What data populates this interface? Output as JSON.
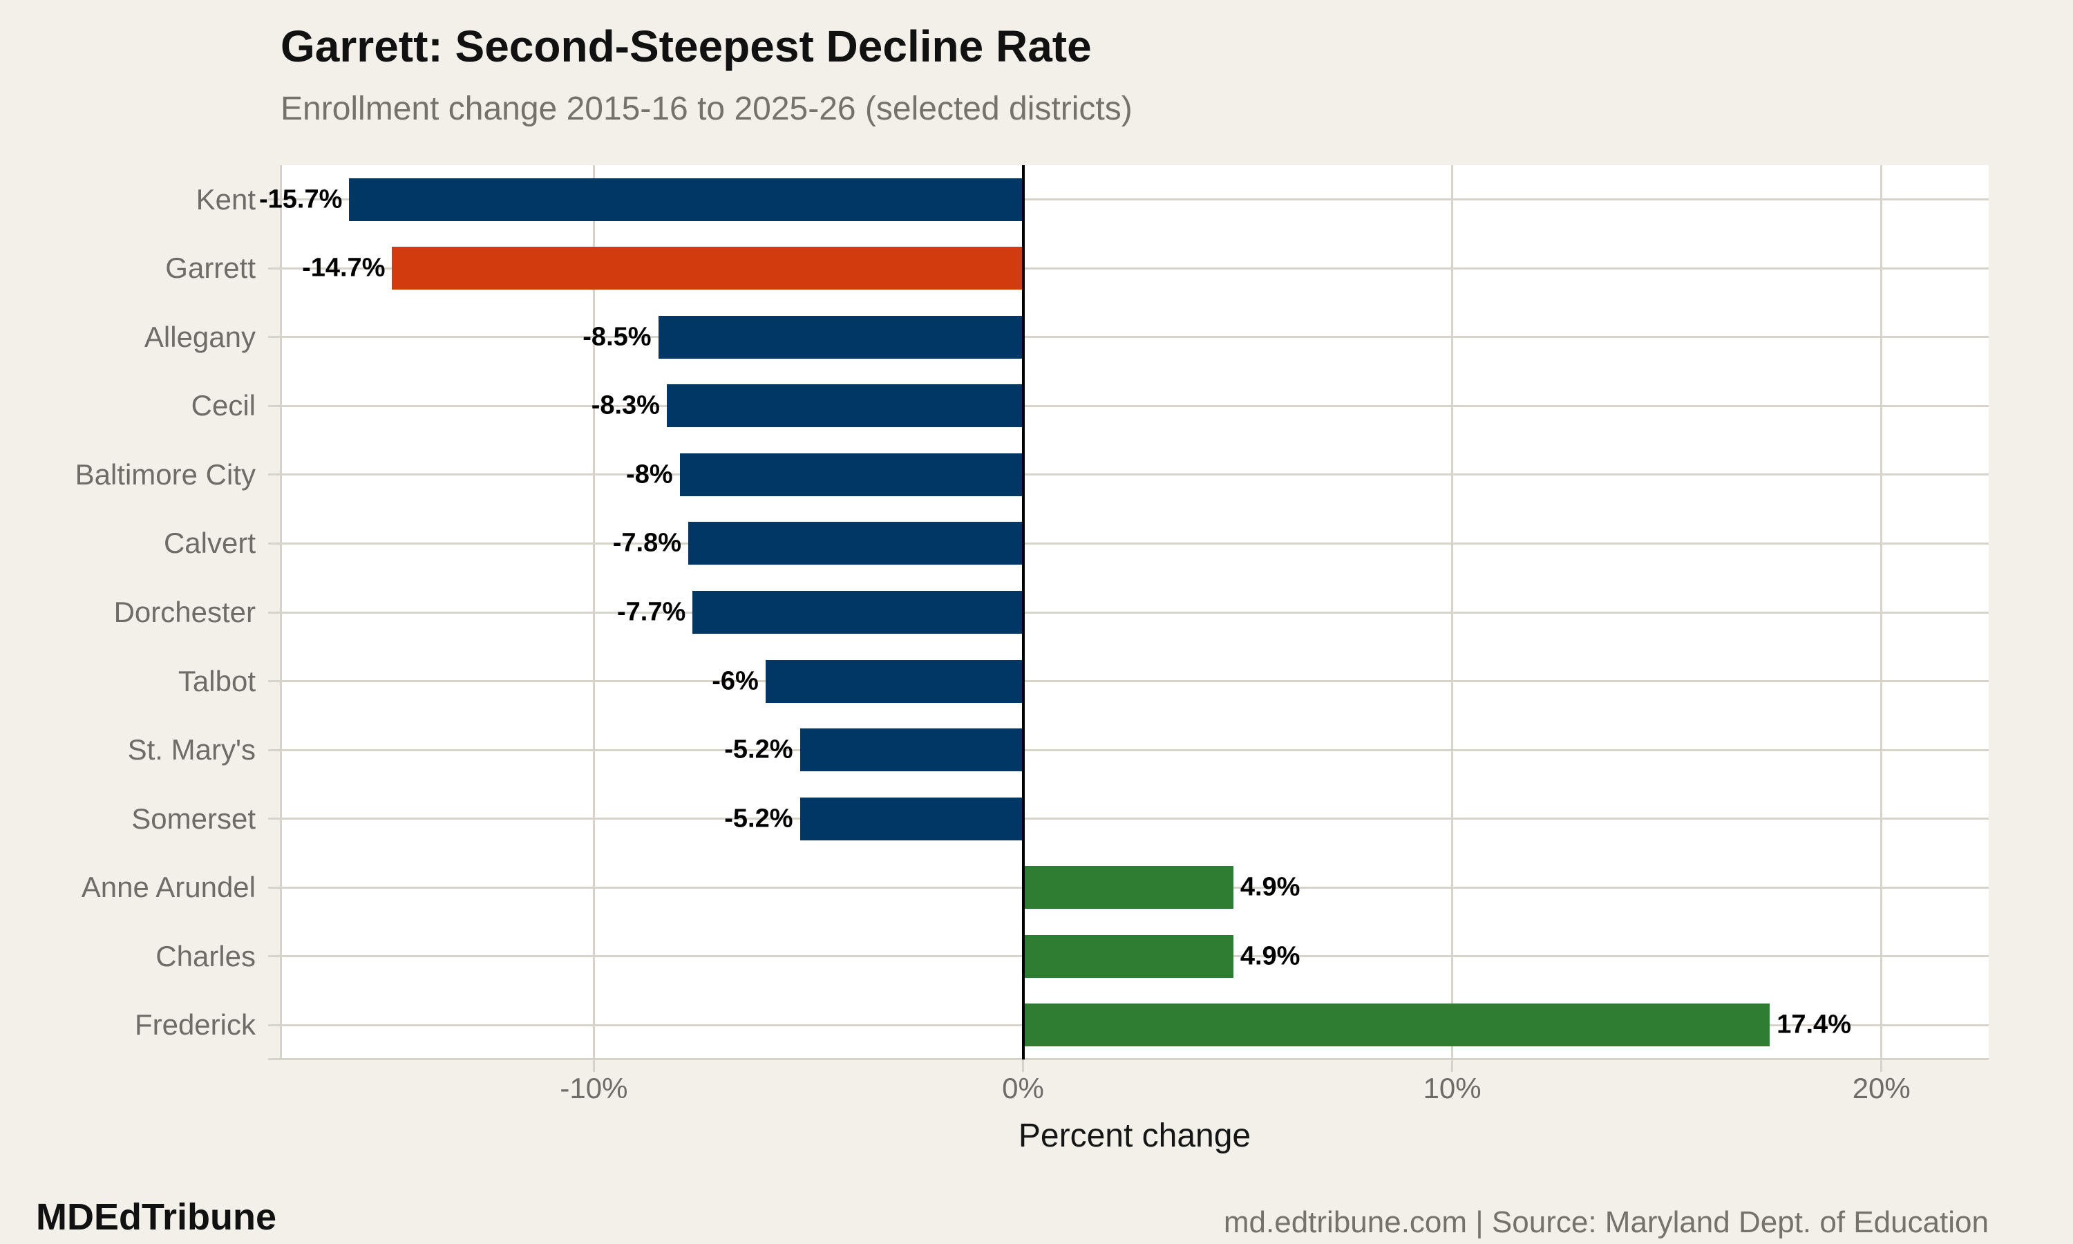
{
  "header": {
    "title": "Garrett: Second-Steepest Decline Rate",
    "subtitle": "Enrollment change 2015-16 to 2025-26 (selected districts)"
  },
  "footer": {
    "brand": "MDEdTribune",
    "credit": "md.edtribune.com | Source: Maryland Dept. of Education"
  },
  "chart_data": {
    "type": "bar",
    "orientation": "horizontal",
    "title": "Garrett: Second-Steepest Decline Rate",
    "subtitle": "Enrollment change 2015-16 to 2025-26 (selected districts)",
    "xlabel": "Percent change",
    "categories": [
      "Kent",
      "Garrett",
      "Allegany",
      "Cecil",
      "Baltimore City",
      "Calvert",
      "Dorchester",
      "Talbot",
      "St. Mary's",
      "Somerset",
      "Anne Arundel",
      "Charles",
      "Frederick"
    ],
    "values": [
      -15.7,
      -14.7,
      -8.5,
      -8.3,
      -8,
      -7.8,
      -7.7,
      -6,
      -5.2,
      -5.2,
      4.9,
      4.9,
      17.4
    ],
    "value_labels": [
      "-15.7%",
      "-14.7%",
      "-8.5%",
      "-8.3%",
      "-8%",
      "-7.8%",
      "-7.7%",
      "-6%",
      "-5.2%",
      "-5.2%",
      "4.9%",
      "4.9%",
      "17.4%"
    ],
    "highlight_category": "Garrett",
    "xlim": [
      -17.3,
      22.5
    ],
    "x_ticks": [
      {
        "value": -10,
        "label": "-10%"
      },
      {
        "value": 0,
        "label": "0%"
      },
      {
        "value": 10,
        "label": "10%"
      },
      {
        "value": 20,
        "label": "20%"
      }
    ],
    "grid": true,
    "legend": "none",
    "colors": {
      "decline": "#003765",
      "growth": "#2e7d33",
      "highlight": "#d13b0e",
      "zero_line": "#000000",
      "gridline": "#d8d3ca",
      "plot_bg": "#ffffff",
      "page_bg": "#f3f0ea",
      "category_label": "#6f6b66",
      "value_label": "#000000"
    }
  }
}
